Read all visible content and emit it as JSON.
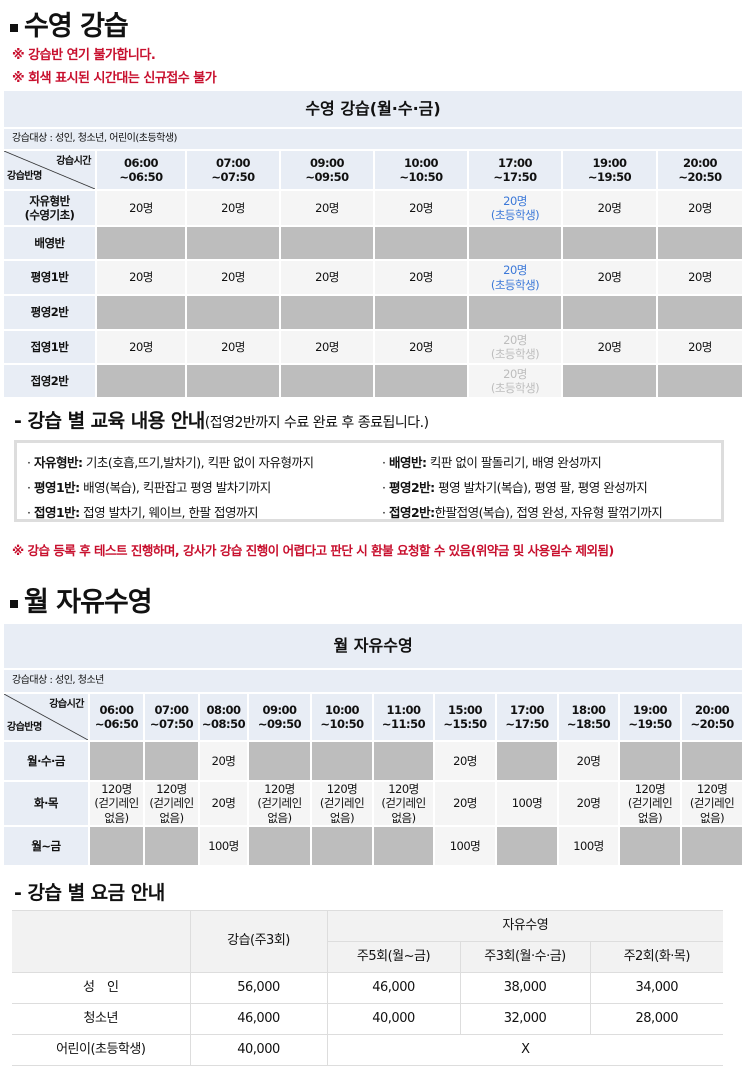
{
  "section1": {
    "title": "수영 강습",
    "notes": [
      "※ 강습반 연기 불가합니다.",
      "※ 회색 표시된 시간대는 신규접수 불가"
    ]
  },
  "table1": {
    "title": "수영 강습(월·수·금)",
    "target": "강습대상 : 성인, 청소년, 어린이(초등학생)",
    "corner_top": "강습시간",
    "corner_bottom": "강습반명",
    "times": [
      "06:00\n~06:50",
      "07:00\n~07:50",
      "09:00\n~09:50",
      "10:00\n~10:50",
      "17:00\n~17:50",
      "19:00\n~19:50",
      "20:00\n~20:50"
    ],
    "rows": [
      {
        "label": "자유형반\n(수영기초)",
        "cells": [
          {
            "text": "20명"
          },
          {
            "text": "20명"
          },
          {
            "text": "20명"
          },
          {
            "text": "20명"
          },
          {
            "text": "20명\n(초등학생)",
            "state": "blue"
          },
          {
            "text": "20명"
          },
          {
            "text": "20명"
          }
        ]
      },
      {
        "label": "배영반",
        "cells": [
          {
            "state": "closed"
          },
          {
            "state": "closed"
          },
          {
            "state": "closed"
          },
          {
            "state": "closed"
          },
          {
            "state": "closed"
          },
          {
            "state": "closed"
          },
          {
            "state": "closed"
          }
        ]
      },
      {
        "label": "평영1반",
        "cells": [
          {
            "text": "20명"
          },
          {
            "text": "20명"
          },
          {
            "text": "20명"
          },
          {
            "text": "20명"
          },
          {
            "text": "20명\n(초등학생)",
            "state": "blue"
          },
          {
            "text": "20명"
          },
          {
            "text": "20명"
          }
        ]
      },
      {
        "label": "평영2반",
        "cells": [
          {
            "state": "closed"
          },
          {
            "state": "closed"
          },
          {
            "state": "closed"
          },
          {
            "state": "closed"
          },
          {
            "state": "closed"
          },
          {
            "state": "closed"
          },
          {
            "state": "closed"
          }
        ]
      },
      {
        "label": "접영1반",
        "cells": [
          {
            "text": "20명"
          },
          {
            "text": "20명"
          },
          {
            "text": "20명"
          },
          {
            "text": "20명"
          },
          {
            "text": "20명\n(초등학생)",
            "state": "faded"
          },
          {
            "text": "20명"
          },
          {
            "text": "20명"
          }
        ]
      },
      {
        "label": "접영2반",
        "cells": [
          {
            "state": "closed"
          },
          {
            "state": "closed"
          },
          {
            "state": "closed"
          },
          {
            "state": "closed"
          },
          {
            "text": "20명\n(초등학생)",
            "state": "faded"
          },
          {
            "state": "closed"
          },
          {
            "state": "closed"
          }
        ]
      }
    ]
  },
  "curriculum": {
    "title": "- 강습 별 교육 내용 안내",
    "subtitle": "(접영2반까지 수료 완료 후 종료됩니다.)",
    "items": [
      {
        "name": "자유형반:",
        "desc": " 기초(호흡,뜨기,발차기), 킥판 없이 자유형까지"
      },
      {
        "name": "배영반:",
        "desc": " 킥판 없이 팔돌리기, 배영 완성까지"
      },
      {
        "name": "평영1반:",
        "desc": " 배영(복습), 킥판잡고 평영 발차기까지"
      },
      {
        "name": "평영2반:",
        "desc": " 평영 발차기(복습), 평영 팔, 평영 완성까지"
      },
      {
        "name": "접영1반:",
        "desc": " 접영 발차기, 웨이브, 한팔 접영까지"
      },
      {
        "name": "접영2반:",
        "desc": "한팔접영(복습), 접영 완성, 자유형 팔꺾기까지"
      }
    ],
    "note": "※ 강습 등록 후 테스트 진행하며, 강사가 강습 진행이 어렵다고 판단 시 환불 요청할 수 있음(위약금 및 사용일수 제외됨)"
  },
  "section2": {
    "title": "월 자유수영"
  },
  "table2": {
    "title": "월 자유수영",
    "target": "강습대상 : 성인, 청소년",
    "corner_top": "강습시간",
    "corner_bottom": "강습반명",
    "times": [
      "06:00\n~06:50",
      "07:00\n~07:50",
      "08:00\n~08:50",
      "09:00\n~09:50",
      "10:00\n~10:50",
      "11:00\n~11:50",
      "15:00\n~15:50",
      "17:00\n~17:50",
      "18:00\n~18:50",
      "19:00\n~19:50",
      "20:00\n~20:50"
    ],
    "rows": [
      {
        "label": "월·수·금",
        "cells": [
          {
            "state": "closed"
          },
          {
            "state": "closed"
          },
          {
            "text": "20명"
          },
          {
            "state": "closed"
          },
          {
            "state": "closed"
          },
          {
            "state": "closed"
          },
          {
            "text": "20명"
          },
          {
            "state": "closed"
          },
          {
            "text": "20명"
          },
          {
            "state": "closed"
          },
          {
            "state": "closed"
          }
        ]
      },
      {
        "label": "화·목",
        "cells": [
          {
            "text": "120명\n(걷기레인\n없음)"
          },
          {
            "text": "120명\n(걷기레인\n없음)"
          },
          {
            "text": "20명"
          },
          {
            "text": "120명\n(걷기레인\n없음)"
          },
          {
            "text": "120명\n(걷기레인\n없음)"
          },
          {
            "text": "120명\n(걷기레인\n없음)"
          },
          {
            "text": "20명"
          },
          {
            "text": "100명"
          },
          {
            "text": "20명"
          },
          {
            "text": "120명\n(걷기레인\n없음)"
          },
          {
            "text": "120명\n(걷기레인\n없음)"
          }
        ]
      },
      {
        "label": "월~금",
        "cells": [
          {
            "state": "closed"
          },
          {
            "state": "closed"
          },
          {
            "text": "100명"
          },
          {
            "state": "closed"
          },
          {
            "state": "closed"
          },
          {
            "state": "closed"
          },
          {
            "text": "100명"
          },
          {
            "state": "closed"
          },
          {
            "text": "100명"
          },
          {
            "state": "closed"
          },
          {
            "state": "closed"
          }
        ]
      }
    ]
  },
  "fees": {
    "title": "- 강습 별 요금 안내",
    "lesson_header": "강습(주3회)",
    "free_header": "자유수영",
    "sub_headers": [
      "주5회(월~금)",
      "주3회(월·수·금)",
      "주2회(화·목)"
    ],
    "rows": [
      {
        "label": "성　인",
        "values": [
          "56,000",
          "46,000",
          "38,000",
          "34,000"
        ]
      },
      {
        "label": "청소년",
        "values": [
          "46,000",
          "40,000",
          "32,000",
          "28,000"
        ]
      },
      {
        "label": "어린이(초등학생)",
        "values": [
          "40,000",
          "X"
        ]
      }
    ]
  }
}
